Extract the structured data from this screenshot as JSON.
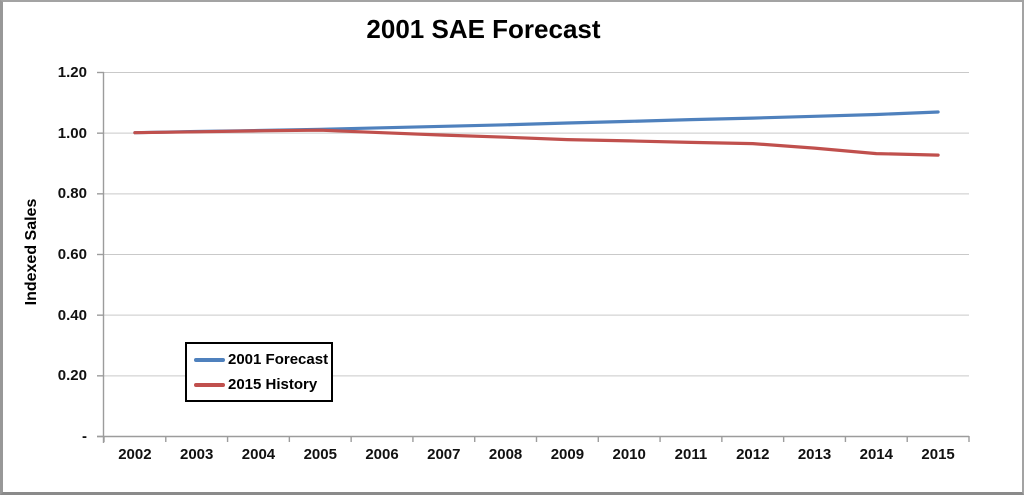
{
  "chart_data": {
    "type": "line",
    "title": "2001 SAE Forecast",
    "xlabel": "",
    "ylabel": "Indexed Sales",
    "categories": [
      "2002",
      "2003",
      "2004",
      "2005",
      "2006",
      "2007",
      "2008",
      "2009",
      "2010",
      "2011",
      "2012",
      "2013",
      "2014",
      "2015"
    ],
    "series": [
      {
        "name": "2001 Forecast",
        "color": "#4F81BD",
        "values": [
          1.0,
          1.004,
          1.007,
          1.011,
          1.016,
          1.021,
          1.026,
          1.032,
          1.037,
          1.043,
          1.048,
          1.054,
          1.06,
          1.068
        ]
      },
      {
        "name": "2015 History",
        "color": "#C0504D",
        "values": [
          1.0,
          1.003,
          1.006,
          1.008,
          1.0,
          0.992,
          0.985,
          0.977,
          0.973,
          0.968,
          0.964,
          0.949,
          0.931,
          0.926
        ]
      }
    ],
    "y_ticks": [
      {
        "label": "1.20",
        "value": 1.2
      },
      {
        "label": "1.00",
        "value": 1.0
      },
      {
        "label": "0.80",
        "value": 0.8
      },
      {
        "label": "0.60",
        "value": 0.6
      },
      {
        "label": "0.40",
        "value": 0.4
      },
      {
        "label": "0.20",
        "value": 0.2
      },
      {
        "label": "-",
        "value": 0.0
      }
    ],
    "ylim": [
      0,
      1.2
    ],
    "grid": true,
    "legend_position": "inside-lower-left",
    "colors": {
      "gridline": "#C9C9C9",
      "axis": "#9C9C9C",
      "text": "#000000",
      "background": "#FFFFFF"
    }
  }
}
